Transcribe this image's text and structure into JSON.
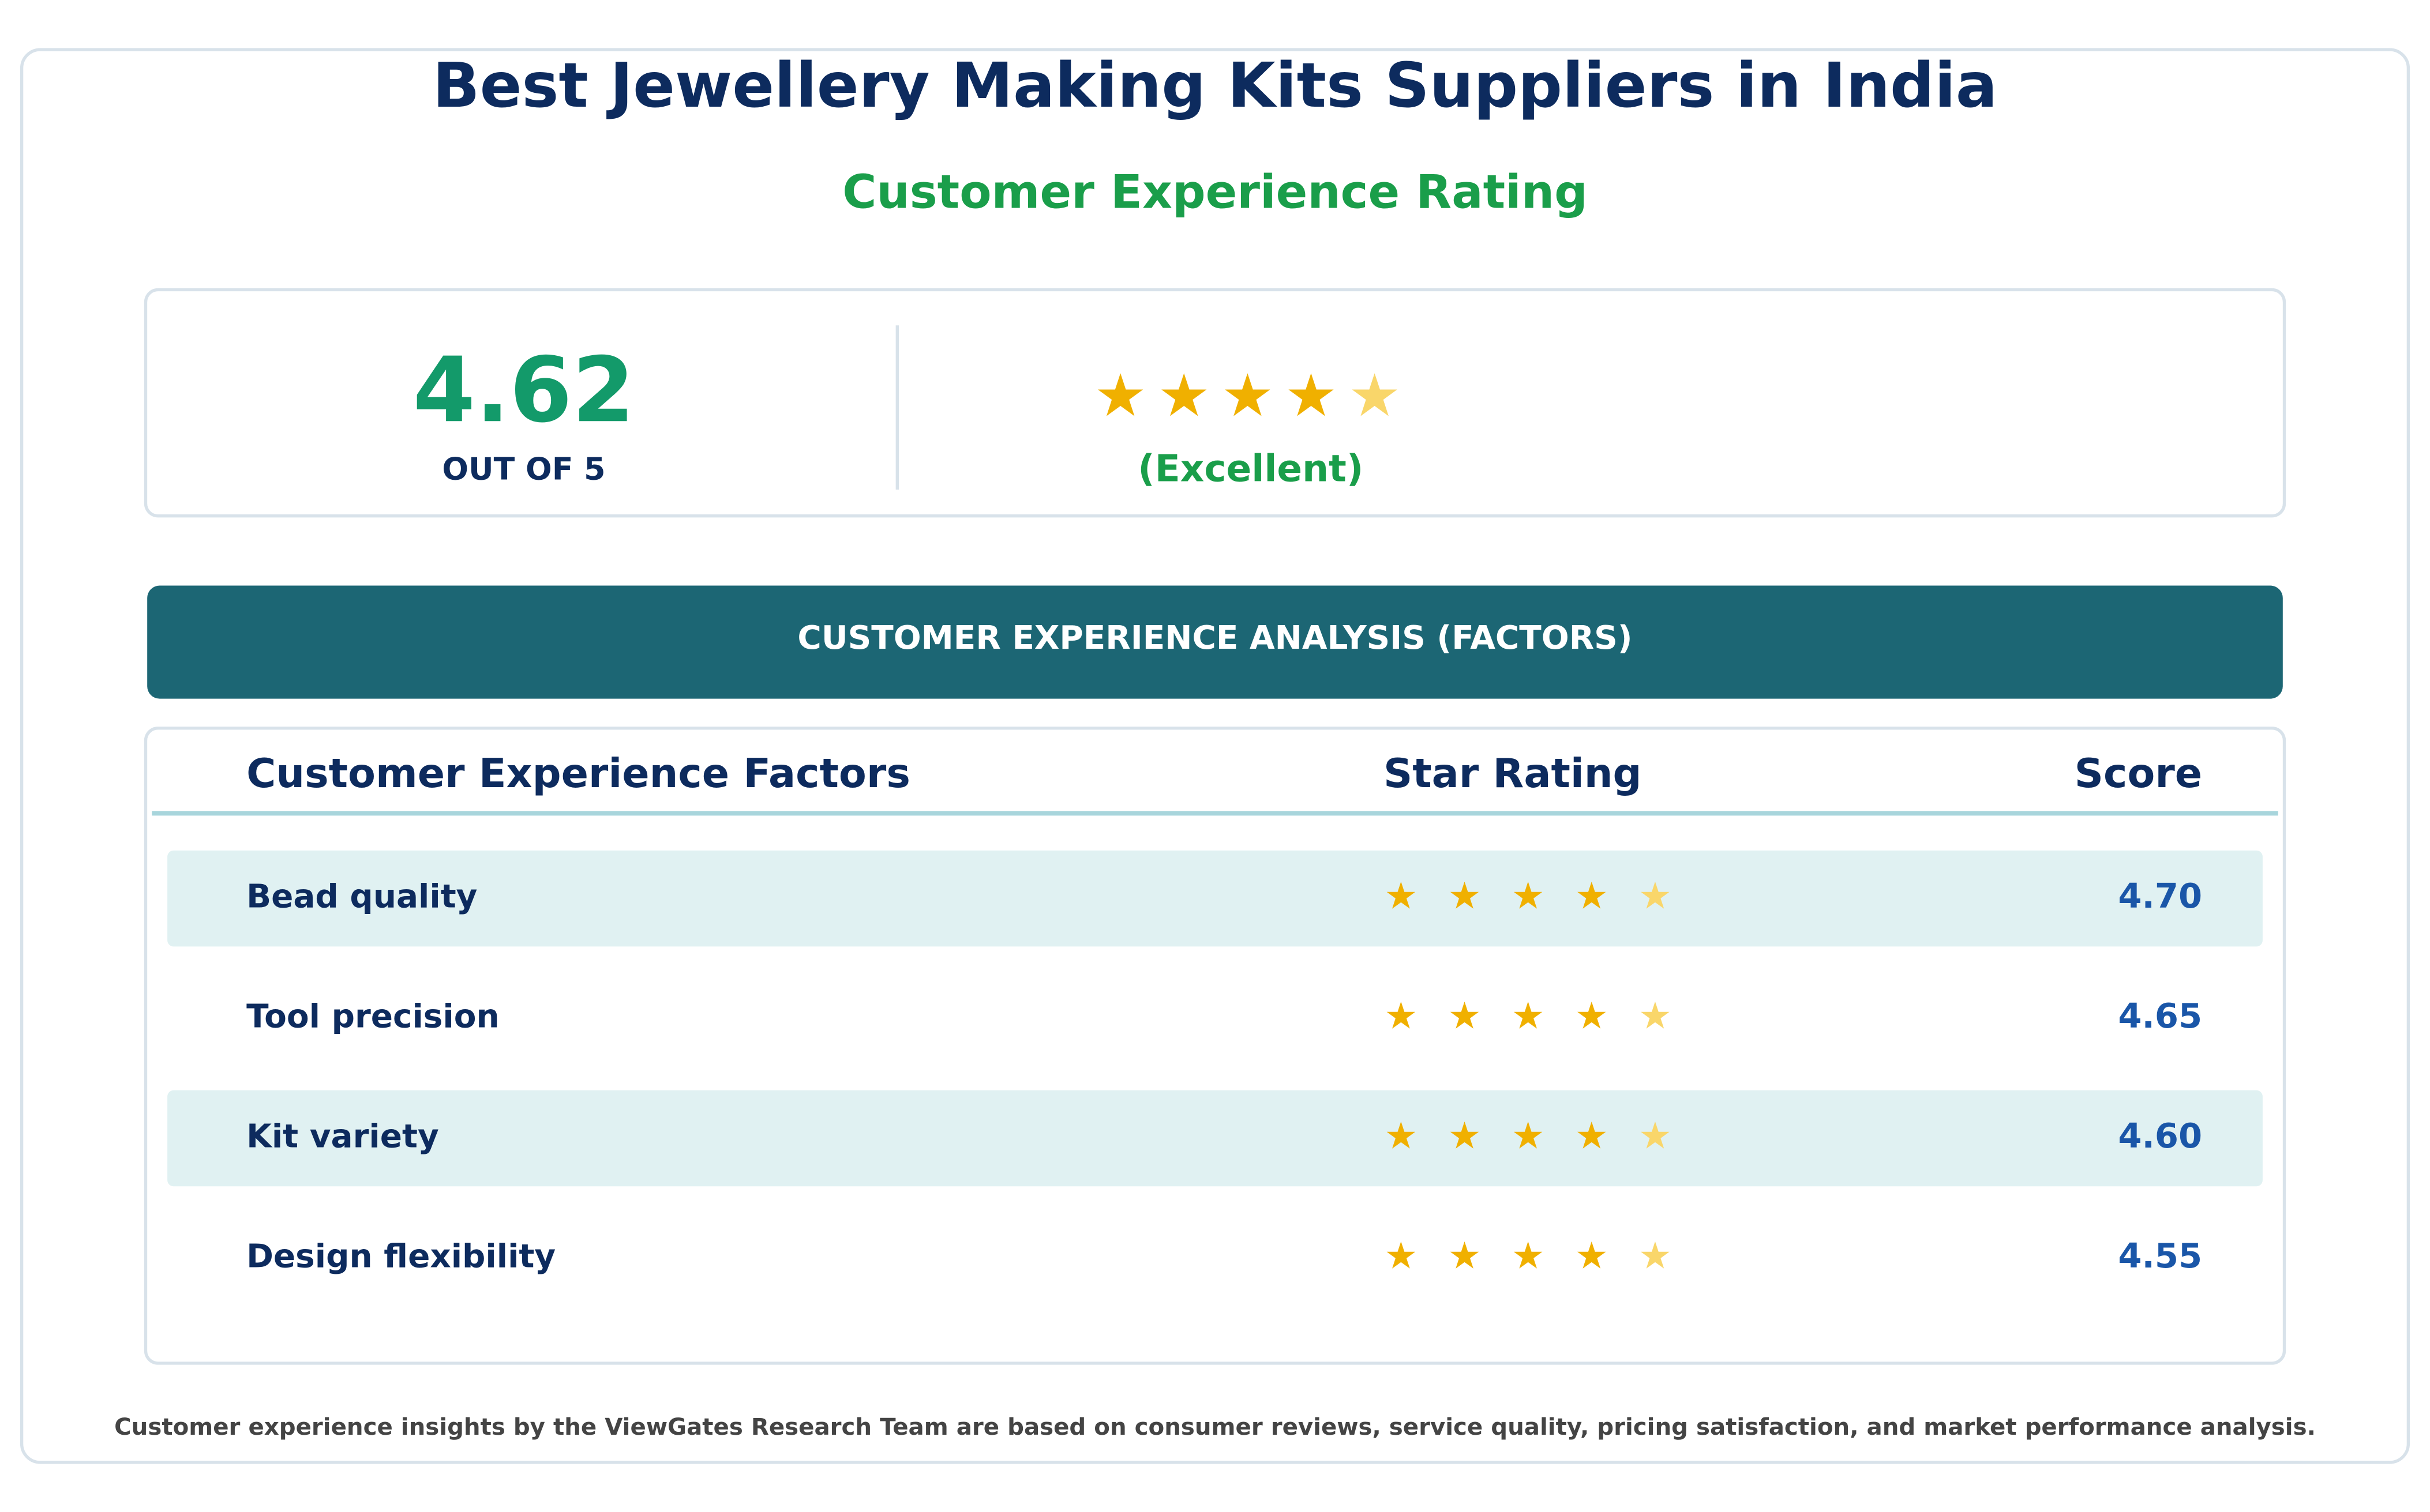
{
  "header": {
    "title": "Best Jewellery Making Kits Suppliers in India",
    "subtitle": "Customer Experience Rating"
  },
  "summary": {
    "score": "4.62",
    "scale": "OUT OF 5",
    "verdict": "(Excellent)"
  },
  "section": {
    "title": "CUSTOMER EXPERIENCE ANALYSIS (FACTORS)"
  },
  "table": {
    "columns": [
      "Customer Experience Factors",
      "Star Rating",
      "Score"
    ],
    "rows": [
      [
        "Bead quality",
        "4.70"
      ],
      [
        "Tool precision",
        "4.65"
      ],
      [
        "Kit variety",
        "4.60"
      ],
      [
        "Design flexibility",
        "4.55"
      ]
    ]
  },
  "footer": {
    "note": "Customer experience insights by the ViewGates Research Team are based on consumer reviews, service quality, pricing satisfaction, and market performance analysis."
  }
}
